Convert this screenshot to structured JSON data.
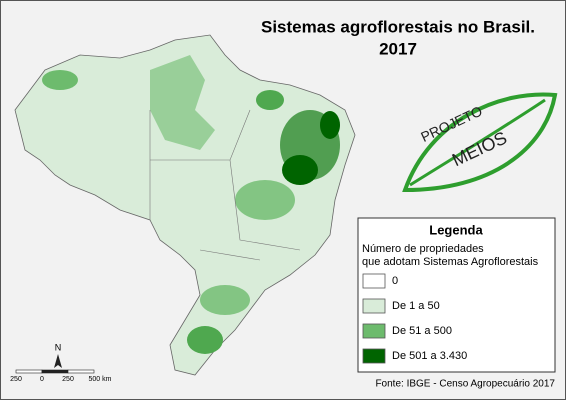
{
  "title": [
    "Sistemas agroflorestais no Brasil.",
    "2017"
  ],
  "logo": {
    "line1": "PROJETO",
    "line2": "MEIOS"
  },
  "legend": {
    "title": "Legenda",
    "subtitle": [
      "Número de propriedades",
      "que adotam Sistemas Agroflorestais"
    ],
    "items": [
      {
        "label": "0",
        "color": "#ffffff"
      },
      {
        "label": "De 1 a 50",
        "color": "#d9ecd9"
      },
      {
        "label": "De 51 a 500",
        "color": "#6dbb6d"
      },
      {
        "label": "De 501 a 3.430",
        "color": "#006400"
      }
    ]
  },
  "north": "N",
  "scale": [
    "250",
    "0",
    "250",
    "500 km"
  ],
  "source": "Fonte: IBGE - Censo Agropecuário 2017"
}
